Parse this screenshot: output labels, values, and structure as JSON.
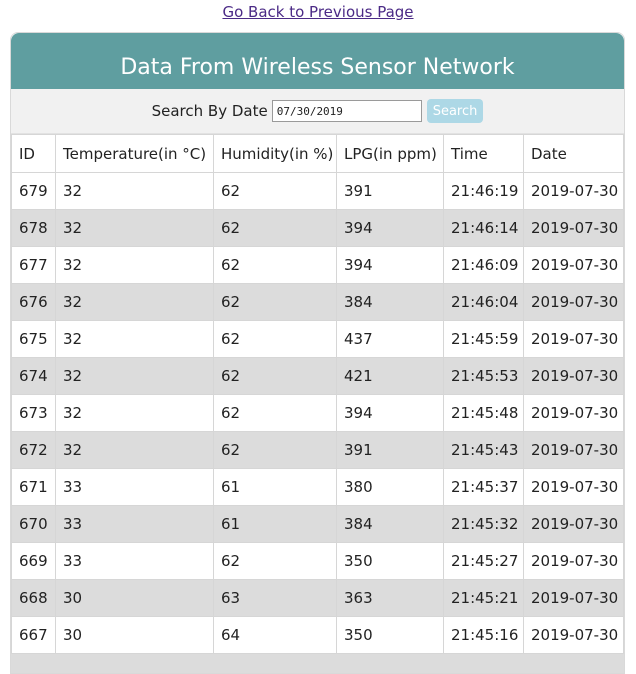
{
  "nav": {
    "back_link": "Go Back to Previous Page"
  },
  "header": {
    "title": "Data From Wireless Sensor Network"
  },
  "search": {
    "label": "Search By Date",
    "value": "07/30/2019",
    "button": "Search"
  },
  "table": {
    "columns": [
      "ID",
      "Temperature(in °C)",
      "Humidity(in %)",
      "LPG(in ppm)",
      "Time",
      "Date"
    ],
    "rows": [
      [
        "679",
        "32",
        "62",
        "391",
        "21:46:19",
        "2019-07-30"
      ],
      [
        "678",
        "32",
        "62",
        "394",
        "21:46:14",
        "2019-07-30"
      ],
      [
        "677",
        "32",
        "62",
        "394",
        "21:46:09",
        "2019-07-30"
      ],
      [
        "676",
        "32",
        "62",
        "384",
        "21:46:04",
        "2019-07-30"
      ],
      [
        "675",
        "32",
        "62",
        "437",
        "21:45:59",
        "2019-07-30"
      ],
      [
        "674",
        "32",
        "62",
        "421",
        "21:45:53",
        "2019-07-30"
      ],
      [
        "673",
        "32",
        "62",
        "394",
        "21:45:48",
        "2019-07-30"
      ],
      [
        "672",
        "32",
        "62",
        "391",
        "21:45:43",
        "2019-07-30"
      ],
      [
        "671",
        "33",
        "61",
        "380",
        "21:45:37",
        "2019-07-30"
      ],
      [
        "670",
        "33",
        "61",
        "384",
        "21:45:32",
        "2019-07-30"
      ],
      [
        "669",
        "33",
        "62",
        "350",
        "21:45:27",
        "2019-07-30"
      ],
      [
        "668",
        "30",
        "63",
        "363",
        "21:45:21",
        "2019-07-30"
      ],
      [
        "667",
        "30",
        "64",
        "350",
        "21:45:16",
        "2019-07-30"
      ]
    ]
  },
  "colors": {
    "header_bg": "#5f9ea0",
    "search_button_bg": "#add8e6",
    "row_stripe": "#dcdcdc",
    "link": "#4b2a86"
  }
}
